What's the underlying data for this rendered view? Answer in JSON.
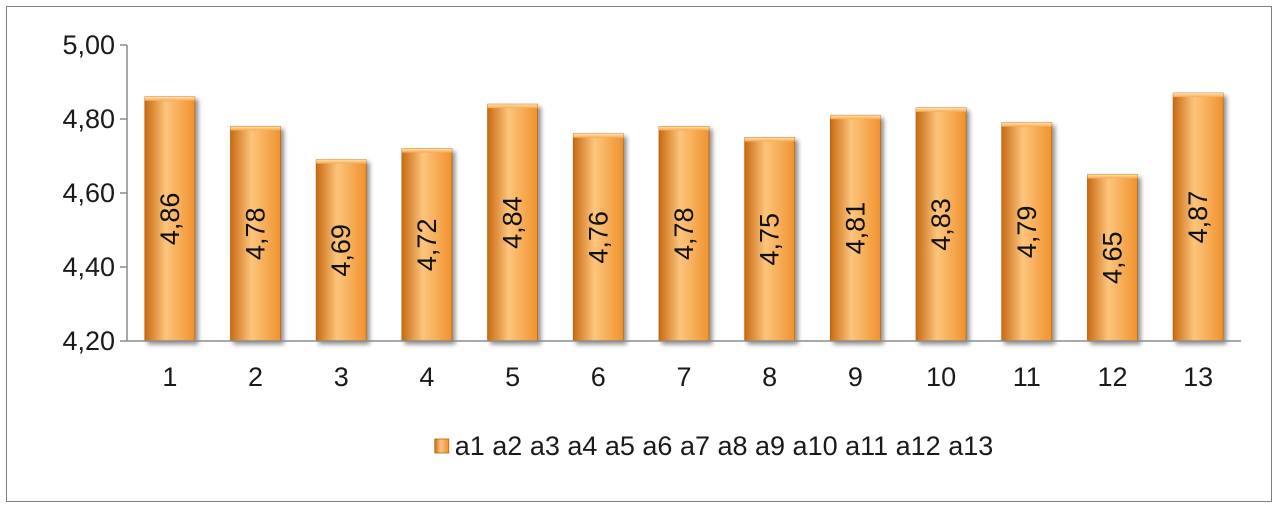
{
  "chart_data": {
    "type": "bar",
    "categories": [
      "1",
      "2",
      "3",
      "4",
      "5",
      "6",
      "7",
      "8",
      "9",
      "10",
      "11",
      "12",
      "13"
    ],
    "series": [
      {
        "name": "a1 a2 a3 a4 a5 a6 a7 a8 a9 a10 a11 a12 a13",
        "values": [
          4.86,
          4.78,
          4.69,
          4.72,
          4.84,
          4.76,
          4.78,
          4.75,
          4.81,
          4.83,
          4.79,
          4.65,
          4.87
        ],
        "labels": [
          "4,86",
          "4,78",
          "4,69",
          "4,72",
          "4,84",
          "4,76",
          "4,78",
          "4,75",
          "4,81",
          "4,83",
          "4,79",
          "4,65",
          "4,87"
        ]
      }
    ],
    "title": "",
    "xlabel": "",
    "ylabel": "",
    "ylim": [
      4.2,
      5.0
    ],
    "yticks": [
      5.0,
      4.8,
      4.6,
      4.4,
      4.2
    ],
    "ytick_labels": [
      "5,00",
      "4,80",
      "4,60",
      "4,40",
      "4,20"
    ],
    "grid": false,
    "legend_position": "bottom",
    "bar_color": "#f0922e",
    "bar_highlight": "#fcc57c",
    "bar_shadow": "#c96a12"
  }
}
